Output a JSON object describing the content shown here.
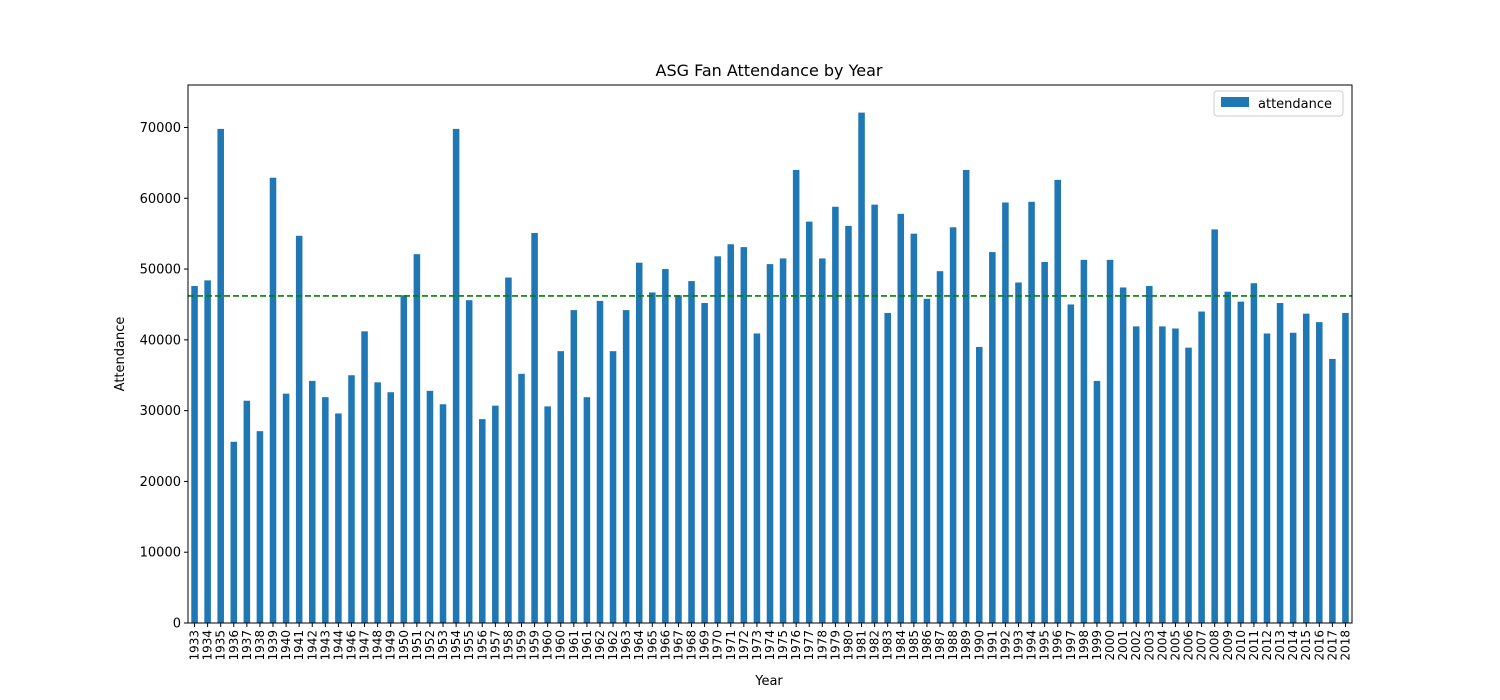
{
  "chart_data": {
    "type": "bar",
    "title": "ASG Fan Attendance by Year",
    "xlabel": "Year",
    "ylabel": "Attendance",
    "ylim": [
      0,
      76000
    ],
    "yticks": [
      0,
      10000,
      20000,
      30000,
      40000,
      50000,
      60000,
      70000
    ],
    "grid": false,
    "legend_position": "top-right",
    "bar_color": "#1f77b4",
    "reference_line": {
      "value": 46200,
      "color": "#008000",
      "style": "dashed"
    },
    "categories": [
      "1933",
      "1934",
      "1935",
      "1936",
      "1937",
      "1938",
      "1939",
      "1940",
      "1941",
      "1942",
      "1943",
      "1944",
      "1946",
      "1947",
      "1948",
      "1949",
      "1950",
      "1951",
      "1952",
      "1953",
      "1954",
      "1955",
      "1956",
      "1957",
      "1958",
      "1959",
      "1959",
      "1960",
      "1960",
      "1961",
      "1961",
      "1962",
      "1962",
      "1963",
      "1964",
      "1965",
      "1966",
      "1967",
      "1968",
      "1969",
      "1970",
      "1971",
      "1972",
      "1973",
      "1974",
      "1975",
      "1976",
      "1977",
      "1978",
      "1979",
      "1980",
      "1981",
      "1982",
      "1983",
      "1984",
      "1985",
      "1986",
      "1987",
      "1988",
      "1989",
      "1990",
      "1991",
      "1992",
      "1993",
      "1994",
      "1995",
      "1996",
      "1997",
      "1998",
      "1999",
      "2000",
      "2001",
      "2002",
      "2003",
      "2004",
      "2005",
      "2006",
      "2007",
      "2008",
      "2009",
      "2010",
      "2011",
      "2012",
      "2013",
      "2014",
      "2015",
      "2016",
      "2017",
      "2018"
    ],
    "series": [
      {
        "name": "attendance",
        "values": [
          47600,
          48400,
          69800,
          25600,
          31400,
          27100,
          62900,
          32400,
          54700,
          34200,
          31900,
          29600,
          35000,
          41200,
          34000,
          32600,
          46300,
          52100,
          32800,
          30900,
          69800,
          45600,
          28800,
          30700,
          48800,
          35200,
          55100,
          30600,
          38400,
          44200,
          31900,
          45500,
          38400,
          44200,
          50900,
          46700,
          50000,
          46300,
          48300,
          45200,
          51800,
          53500,
          53100,
          40900,
          50700,
          51500,
          64000,
          56700,
          51500,
          58800,
          56100,
          72100,
          59100,
          43800,
          57800,
          55000,
          45800,
          49700,
          55900,
          64000,
          39000,
          52400,
          59400,
          48100,
          59500,
          51000,
          62600,
          45000,
          51300,
          34200,
          51300,
          47400,
          41900,
          47600,
          41900,
          41600,
          38900,
          44000,
          55600,
          46800,
          45400,
          48000,
          40900,
          45200,
          41000,
          43700,
          42500,
          37300,
          43800
        ]
      }
    ]
  }
}
